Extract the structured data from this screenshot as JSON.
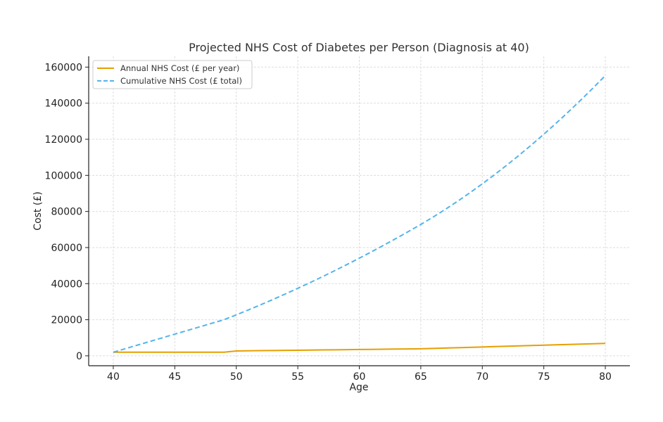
{
  "chart_data": {
    "type": "line",
    "title": "Projected NHS Cost of Diabetes per Person (Diagnosis at 40)",
    "xlabel": "Age",
    "ylabel": "Cost (£)",
    "xlim": [
      38,
      82
    ],
    "ylim": [
      -5500,
      166000
    ],
    "xticks": [
      40,
      45,
      50,
      55,
      60,
      65,
      70,
      75,
      80
    ],
    "yticks": [
      0,
      20000,
      40000,
      60000,
      80000,
      100000,
      120000,
      140000,
      160000
    ],
    "grid": true,
    "legend_position": "top-left",
    "x": [
      40,
      41,
      42,
      43,
      44,
      45,
      46,
      47,
      48,
      49,
      50,
      51,
      52,
      53,
      54,
      55,
      56,
      57,
      58,
      59,
      60,
      61,
      62,
      63,
      64,
      65,
      66,
      67,
      68,
      69,
      70,
      71,
      72,
      73,
      74,
      75,
      76,
      77,
      78,
      79,
      80
    ],
    "series": [
      {
        "name": "Annual NHS Cost (£ per year)",
        "color": "#E69F00",
        "style": "solid",
        "values": [
          2000,
          2000,
          2000,
          2000,
          2000,
          2000,
          2000,
          2000,
          2000,
          2000,
          2700,
          2780,
          2860,
          2940,
          3020,
          3100,
          3180,
          3260,
          3340,
          3420,
          3500,
          3580,
          3660,
          3740,
          3820,
          3900,
          4100,
          4300,
          4500,
          4700,
          4900,
          5100,
          5300,
          5500,
          5700,
          5900,
          6100,
          6300,
          6500,
          6700,
          6900
        ]
      },
      {
        "name": "Cumulative NHS Cost (£ total)",
        "color": "#56B4E9",
        "style": "dashed",
        "values": [
          2000,
          4000,
          6000,
          8000,
          10000,
          12000,
          14000,
          16000,
          18000,
          20000,
          22700,
          25480,
          28340,
          31280,
          34300,
          37400,
          40580,
          43840,
          47180,
          50600,
          54100,
          57680,
          61340,
          65080,
          68900,
          72800,
          76900,
          81200,
          85700,
          90400,
          95300,
          100400,
          105700,
          111200,
          116900,
          122800,
          128900,
          135200,
          141700,
          148400,
          155300
        ]
      }
    ]
  }
}
